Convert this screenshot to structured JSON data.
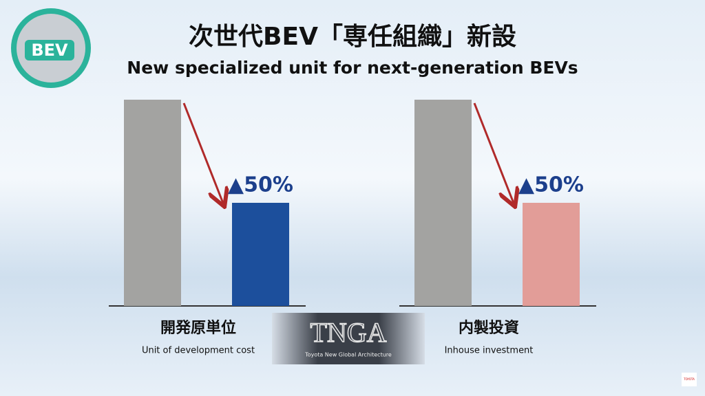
{
  "header": {
    "title": "次世代BEV「専任組織」新設",
    "subtitle": "New specialized unit for next-generation BEVs"
  },
  "badge": "BEV",
  "logo": {
    "mark": "TNGA",
    "caption": "Toyota New Global Architecture"
  },
  "corner_logo": "TOYOTA",
  "chart_data": [
    {
      "type": "bar",
      "title": "開発原単位",
      "subtitle": "Unit of development cost",
      "categories": [
        null,
        null
      ],
      "values": [
        100,
        50
      ],
      "colors": [
        "#a3a3a1",
        "#1c4f9c"
      ],
      "annotation": "▲50%"
    },
    {
      "type": "bar",
      "title": "内製投資",
      "subtitle": "Inhouse investment",
      "categories": [
        null,
        null
      ],
      "values": [
        100,
        50
      ],
      "colors": [
        "#a3a3a1",
        "#e29d98"
      ],
      "annotation": "▲50%"
    }
  ]
}
